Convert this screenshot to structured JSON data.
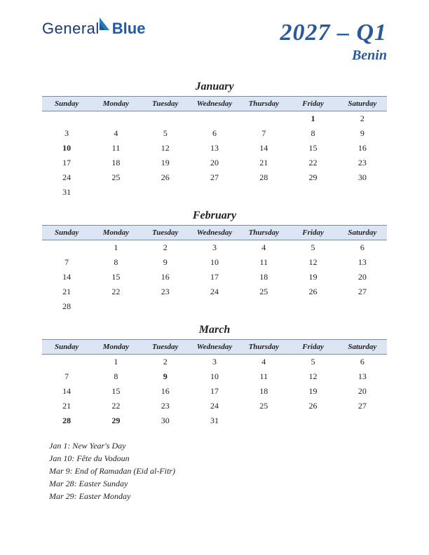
{
  "logo": {
    "text1": "General",
    "text2": "Blue"
  },
  "title": {
    "period": "2027 – Q1",
    "country": "Benin"
  },
  "dayHeaders": [
    "Sunday",
    "Monday",
    "Tuesday",
    "Wednesday",
    "Thursday",
    "Friday",
    "Saturday"
  ],
  "colors": {
    "header_bg": "#dbe5f3",
    "header_border": "#7a8aa5",
    "holiday": "#c0392b",
    "title": "#2a5a9a"
  },
  "months": [
    {
      "name": "January",
      "weeks": [
        [
          "",
          "",
          "",
          "",
          "",
          "1",
          "2"
        ],
        [
          "3",
          "4",
          "5",
          "6",
          "7",
          "8",
          "9"
        ],
        [
          "10",
          "11",
          "12",
          "13",
          "14",
          "15",
          "16"
        ],
        [
          "17",
          "18",
          "19",
          "20",
          "21",
          "22",
          "23"
        ],
        [
          "24",
          "25",
          "26",
          "27",
          "28",
          "29",
          "30"
        ],
        [
          "31",
          "",
          "",
          "",
          "",
          "",
          ""
        ]
      ],
      "holidays": [
        "1",
        "10"
      ]
    },
    {
      "name": "February",
      "weeks": [
        [
          "",
          "1",
          "2",
          "3",
          "4",
          "5",
          "6"
        ],
        [
          "7",
          "8",
          "9",
          "10",
          "11",
          "12",
          "13"
        ],
        [
          "14",
          "15",
          "16",
          "17",
          "18",
          "19",
          "20"
        ],
        [
          "21",
          "22",
          "23",
          "24",
          "25",
          "26",
          "27"
        ],
        [
          "28",
          "",
          "",
          "",
          "",
          "",
          ""
        ]
      ],
      "holidays": []
    },
    {
      "name": "March",
      "weeks": [
        [
          "",
          "1",
          "2",
          "3",
          "4",
          "5",
          "6"
        ],
        [
          "7",
          "8",
          "9",
          "10",
          "11",
          "12",
          "13"
        ],
        [
          "14",
          "15",
          "16",
          "17",
          "18",
          "19",
          "20"
        ],
        [
          "21",
          "22",
          "23",
          "24",
          "25",
          "26",
          "27"
        ],
        [
          "28",
          "29",
          "30",
          "31",
          "",
          "",
          ""
        ]
      ],
      "holidays": [
        "9",
        "28",
        "29"
      ]
    }
  ],
  "holidayList": [
    "Jan 1: New Year's Day",
    "Jan 10: Fête du Vodoun",
    "Mar 9: End of Ramadan (Eid al-Fitr)",
    "Mar 28: Easter Sunday",
    "Mar 29: Easter Monday"
  ]
}
